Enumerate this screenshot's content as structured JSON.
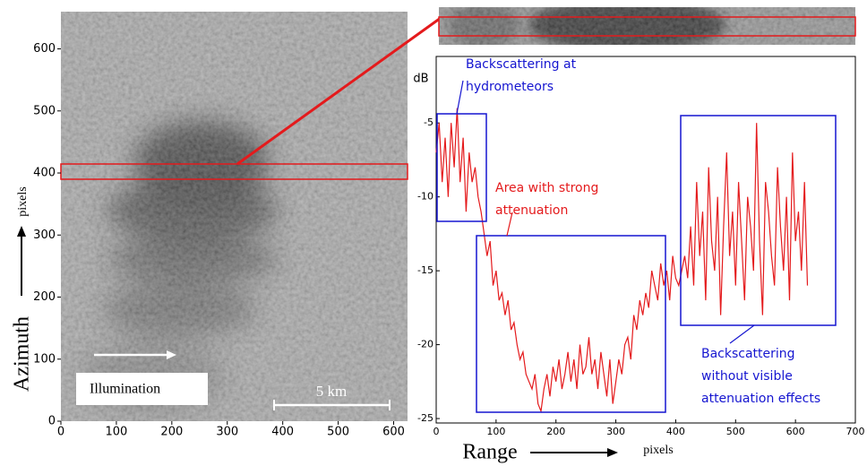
{
  "image_panel": {
    "xlim": [
      0,
      625
    ],
    "ylim": [
      0,
      660
    ],
    "xticks": [
      0,
      100,
      200,
      300,
      400,
      500,
      600
    ],
    "yticks": [
      0,
      100,
      200,
      300,
      400,
      500,
      600
    ],
    "illumination_label": "Illumination",
    "scale_label": "5 km",
    "y_label": "Azimuth",
    "y_unit": "pixels"
  },
  "chart_data": {
    "type": "line",
    "y_label": "dB",
    "x_label": "Range",
    "x_unit": "pixels",
    "xlim": [
      0,
      700
    ],
    "ylim": [
      -25.3,
      -0.5
    ],
    "xticks": [
      0,
      100,
      200,
      300,
      400,
      500,
      600,
      700
    ],
    "yticks": [
      -5,
      -10,
      -15,
      -20,
      -25
    ],
    "x": [
      0,
      5,
      10,
      15,
      20,
      25,
      30,
      35,
      40,
      45,
      50,
      55,
      60,
      65,
      70,
      75,
      80,
      85,
      90,
      95,
      100,
      105,
      110,
      115,
      120,
      125,
      130,
      135,
      140,
      145,
      150,
      155,
      160,
      165,
      170,
      175,
      180,
      185,
      190,
      195,
      200,
      205,
      210,
      215,
      220,
      225,
      230,
      235,
      240,
      245,
      250,
      255,
      260,
      265,
      270,
      275,
      280,
      285,
      290,
      295,
      300,
      305,
      310,
      315,
      320,
      325,
      330,
      335,
      340,
      345,
      350,
      355,
      360,
      365,
      370,
      375,
      380,
      385,
      390,
      395,
      400,
      405,
      410,
      415,
      420,
      425,
      430,
      435,
      440,
      445,
      450,
      455,
      460,
      465,
      470,
      475,
      480,
      485,
      490,
      495,
      500,
      505,
      510,
      515,
      520,
      525,
      530,
      535,
      540,
      545,
      550,
      555,
      560,
      565,
      570,
      575,
      580,
      585,
      590,
      595,
      600,
      605,
      610,
      615,
      620
    ],
    "series": [
      {
        "color": "#e41a1c",
        "values": [
          -7,
          -5,
          -9,
          -6,
          -10,
          -5,
          -8,
          -4,
          -9,
          -6,
          -11,
          -7,
          -9,
          -8,
          -10,
          -11,
          -12.5,
          -14,
          -13,
          -16,
          -15,
          -17,
          -16.5,
          -18,
          -17,
          -19,
          -18.5,
          -20,
          -21,
          -20.5,
          -22,
          -22.5,
          -23,
          -22,
          -24,
          -24.5,
          -23,
          -22,
          -23.5,
          -21.5,
          -22.5,
          -21,
          -23,
          -22,
          -20.5,
          -22.5,
          -21,
          -23,
          -20,
          -22,
          -21.5,
          -19.5,
          -22,
          -21,
          -23,
          -20.5,
          -22,
          -23.5,
          -21,
          -24,
          -22.5,
          -21,
          -22,
          -20,
          -19.5,
          -21,
          -18,
          -19,
          -17,
          -18,
          -16.5,
          -17.5,
          -15,
          -16,
          -17,
          -14.5,
          -16,
          -15,
          -17,
          -14,
          -15.5,
          -16,
          -15,
          -14,
          -15.5,
          -12,
          -16,
          -9,
          -14,
          -11,
          -17,
          -8,
          -13,
          -15,
          -10,
          -18,
          -12,
          -7,
          -14,
          -11,
          -16,
          -9,
          -13,
          -17,
          -10,
          -12,
          -15,
          -5,
          -13,
          -18,
          -9,
          -11,
          -14,
          -16,
          -8,
          -12,
          -15,
          -10,
          -17,
          -7,
          -13,
          -11,
          -15,
          -9,
          -16
        ]
      }
    ],
    "annotations": [
      {
        "lines": [
          "Backscattering at",
          "hydrometeors"
        ],
        "color": "#1515d0"
      },
      {
        "lines": [
          "Area with strong",
          "attenuation"
        ],
        "color": "#e41a1c"
      },
      {
        "lines": [
          "Backscattering",
          "without visible",
          "attenuation effects"
        ],
        "color": "#1515d0"
      }
    ]
  }
}
